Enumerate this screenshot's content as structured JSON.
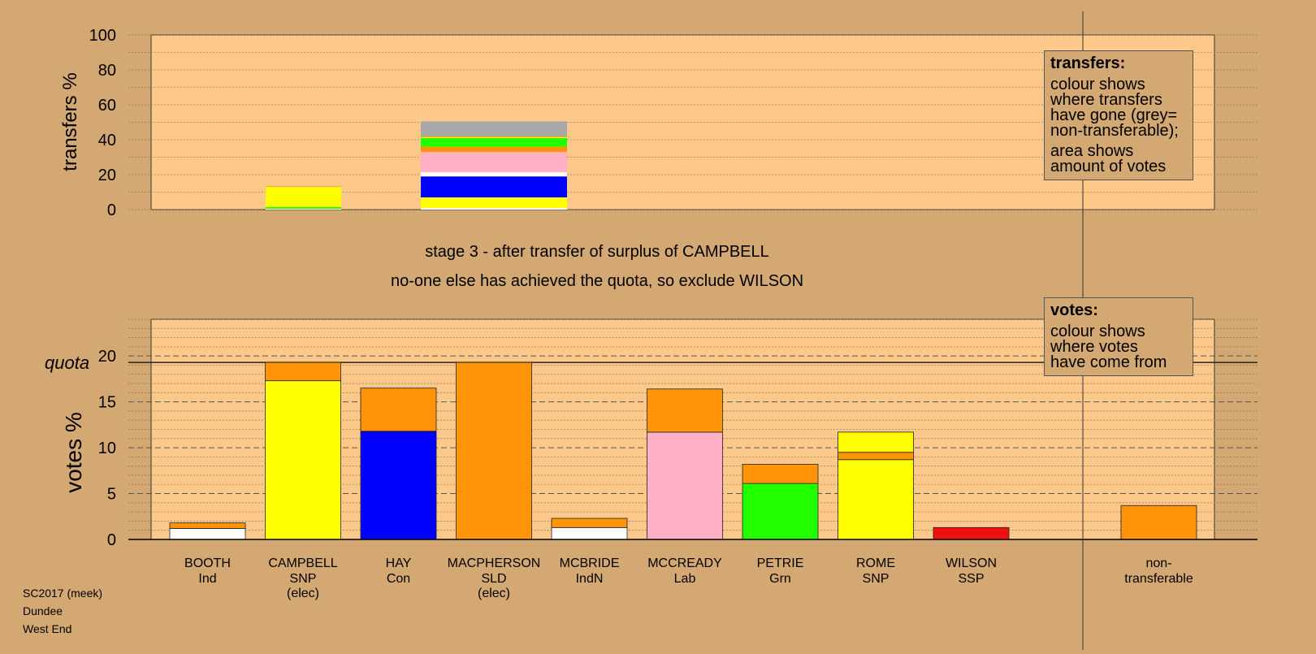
{
  "title_lines": [
    "stage 3 - after transfer of surplus of CAMPBELL",
    "no-one else has achieved the quota, so exclude WILSON"
  ],
  "legends": {
    "transfers": {
      "heading": "transfers:",
      "p1": [
        "colour shows",
        "where transfers",
        "have gone (grey=",
        "non-transferable);"
      ],
      "p2": [
        "area shows",
        "amount of votes"
      ]
    },
    "votes": {
      "heading": "votes:",
      "p1": [
        "colour shows",
        "where votes",
        "have come from"
      ]
    }
  },
  "footer": [
    "SC2017 (meek)",
    "Dundee",
    "West End"
  ],
  "colors": {
    "background": "#d4a872",
    "plot_bg": "#fdc98a",
    "Ind": "#ffffff",
    "SNP": "#ffff00",
    "Con": "#0000ff",
    "SLD": "#ff9408",
    "IndN": "#ffffff",
    "Lab": "#ffb0c4",
    "Grn": "#22ff00",
    "SSP": "#ee1111",
    "nontransferable": "#a8a8a8"
  },
  "chart_data": [
    {
      "type": "bar",
      "stacked": true,
      "ylabel": "transfers %",
      "ylim": [
        0,
        100
      ],
      "yticks": [
        0,
        20,
        40,
        60,
        80,
        100
      ],
      "grid": true,
      "categories": [
        "CAMPBELL SNP (elec)",
        "MACPHERSON SLD (elec)"
      ],
      "columns": [
        {
          "candidate": "CAMPBELL",
          "segments": [
            {
              "party": "Ind",
              "value": 0.5
            },
            {
              "party": "Grn",
              "value": 1
            },
            {
              "party": "SNP",
              "value": 11.5
            },
            {
              "party": "SLD",
              "value": 0.3
            }
          ]
        },
        {
          "candidate": "MACPHERSON",
          "segments": [
            {
              "party": "Ind",
              "value": 1
            },
            {
              "party": "SNP",
              "value": 6
            },
            {
              "party": "Con",
              "value": 12
            },
            {
              "party": "IndN",
              "value": 2.5
            },
            {
              "party": "Lab",
              "value": 11.5
            },
            {
              "party": "SLD",
              "value": 3
            },
            {
              "party": "Grn",
              "value": 5
            },
            {
              "party": "SNP",
              "value": 0.5
            },
            {
              "party": "SLD",
              "value": 0.5
            },
            {
              "party": "nontransferable",
              "value": 8.5
            }
          ]
        }
      ]
    },
    {
      "type": "bar",
      "stacked": true,
      "ylabel": "votes %",
      "ylim": [
        0,
        24
      ],
      "yticks": [
        0,
        5,
        10,
        15,
        20
      ],
      "quota_label": "quota",
      "quota": 19.3,
      "grid": true,
      "candidates": [
        {
          "name": "BOOTH",
          "party": "Ind",
          "elected": "",
          "segments": [
            {
              "party": "Ind",
              "value": 1.2
            },
            {
              "party": "SLD",
              "value": 0.6
            }
          ]
        },
        {
          "name": "CAMPBELL",
          "party": "SNP",
          "elected": "(elec)",
          "segments": [
            {
              "party": "SNP",
              "value": 17.3
            },
            {
              "party": "SLD",
              "value": 2.0
            }
          ]
        },
        {
          "name": "HAY",
          "party": "Con",
          "elected": "",
          "segments": [
            {
              "party": "Con",
              "value": 11.8
            },
            {
              "party": "SLD",
              "value": 4.7
            }
          ]
        },
        {
          "name": "MACPHERSON",
          "party": "SLD",
          "elected": "(elec)",
          "segments": [
            {
              "party": "SLD",
              "value": 19.3
            }
          ]
        },
        {
          "name": "MCBRIDE",
          "party": "IndN",
          "elected": "",
          "segments": [
            {
              "party": "IndN",
              "value": 1.3
            },
            {
              "party": "SLD",
              "value": 1.0
            }
          ]
        },
        {
          "name": "MCCREADY",
          "party": "Lab",
          "elected": "",
          "segments": [
            {
              "party": "Lab",
              "value": 11.7
            },
            {
              "party": "SLD",
              "value": 4.7
            }
          ]
        },
        {
          "name": "PETRIE",
          "party": "Grn",
          "elected": "",
          "segments": [
            {
              "party": "Grn",
              "value": 6.1
            },
            {
              "party": "SLD",
              "value": 2.1
            }
          ]
        },
        {
          "name": "ROME",
          "party": "SNP",
          "elected": "",
          "segments": [
            {
              "party": "SNP",
              "value": 8.7
            },
            {
              "party": "SLD",
              "value": 0.8
            },
            {
              "party": "SNP",
              "value": 2.2
            }
          ]
        },
        {
          "name": "WILSON",
          "party": "SSP",
          "elected": "",
          "segments": [
            {
              "party": "SSP",
              "value": 1.3
            }
          ]
        }
      ],
      "nontransferable": {
        "label_lines": [
          "non-",
          "transferable"
        ],
        "segments": [
          {
            "party": "SLD",
            "value": 3.7
          }
        ]
      }
    }
  ]
}
